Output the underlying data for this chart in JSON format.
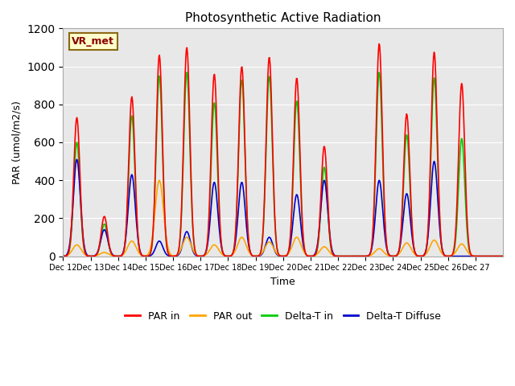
{
  "title": "Photosynthetic Active Radiation",
  "xlabel": "Time",
  "ylabel": "PAR (umol/m2/s)",
  "annotation": "VR_met",
  "ylim": [
    0,
    1200
  ],
  "plot_bg_color": "#e8e8e8",
  "series_colors": {
    "PAR_in": "#ff0000",
    "PAR_out": "#ffa500",
    "DeltaT_in": "#00cc00",
    "DeltaT_diffuse": "#0000cc"
  },
  "legend_labels": [
    "PAR in",
    "PAR out",
    "Delta-T in",
    "Delta-T Diffuse"
  ],
  "tick_dates": [
    "Dec 12",
    "Dec 13",
    "Dec 14",
    "Dec 15",
    "Dec 16",
    "Dec 17",
    "Dec 18",
    "Dec 19",
    "Dec 20",
    "Dec 21",
    "Dec 22",
    "Dec 23",
    "Dec 24",
    "Dec 25",
    "Dec 26",
    "Dec 27"
  ],
  "day_peaks": {
    "PAR_in": [
      730,
      210,
      840,
      1060,
      1100,
      960,
      1000,
      1050,
      940,
      580,
      0,
      1120,
      750,
      1075,
      910,
      0
    ],
    "PAR_out": [
      60,
      20,
      80,
      400,
      100,
      60,
      100,
      75,
      100,
      50,
      0,
      40,
      70,
      85,
      65,
      0
    ],
    "DeltaT_in": [
      600,
      170,
      740,
      950,
      970,
      810,
      930,
      950,
      820,
      470,
      0,
      970,
      640,
      940,
      620,
      0
    ],
    "DeltaT_diffuse": [
      510,
      140,
      430,
      80,
      130,
      390,
      390,
      100,
      325,
      400,
      0,
      400,
      330,
      500,
      0,
      0
    ]
  }
}
